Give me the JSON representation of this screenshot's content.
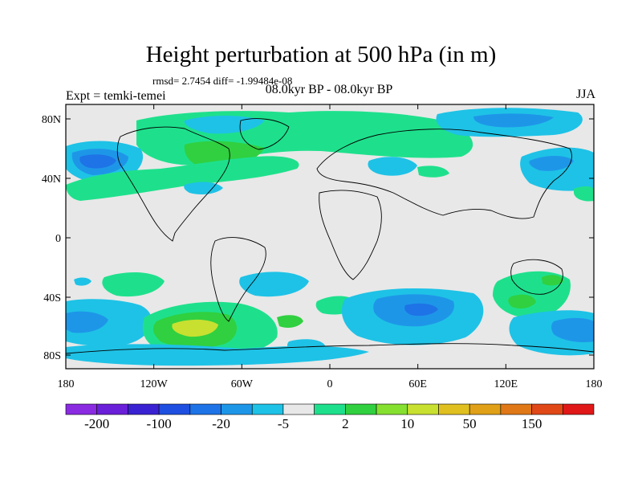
{
  "title": "Height perturbation at 500 hPa (in m)",
  "stats": "rmsd= 2.7454 diff= -1.99484e-08",
  "expt": "Expt = temki-temei",
  "period": "08.0kyr BP - 08.0kyr BP",
  "season": "JJA",
  "lat_ticks": [
    "80N",
    "40N",
    "0",
    "40S",
    "80S"
  ],
  "lon_ticks": [
    "180",
    "120W",
    "60W",
    "0",
    "60E",
    "120E",
    "180"
  ],
  "colorbar": {
    "colors": [
      "#8a2be2",
      "#6a1fd8",
      "#3a22d2",
      "#1e4fe0",
      "#1e73e6",
      "#1e96e8",
      "#1ec2e6",
      "#e8e8e8",
      "#1ee08c",
      "#30d040",
      "#86e030",
      "#c8e030",
      "#e0c020",
      "#e0a018",
      "#e07818",
      "#e04818",
      "#e01818"
    ],
    "labels": [
      "-200",
      "-100",
      "-20",
      "-5",
      "2",
      "10",
      "50",
      "150"
    ]
  },
  "colors": {
    "land_outline": "#000000",
    "background_field": "#e8e8e8",
    "light_blue": "#1ec2e6",
    "mid_blue": "#1e96e8",
    "dark_blue": "#1e73e6",
    "teal_green": "#1ee08c",
    "green": "#30d040",
    "yellow_green": "#c8e030"
  }
}
